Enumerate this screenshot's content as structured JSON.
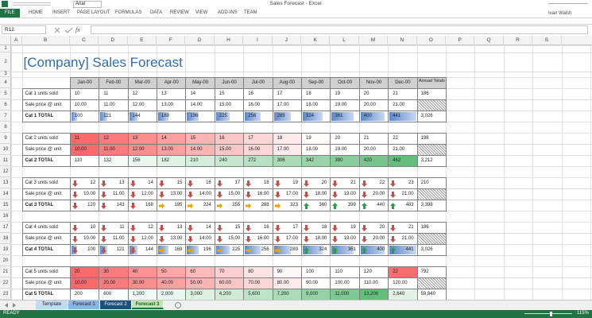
{
  "window": {
    "title": "Sales Forecast - Excel",
    "font": "Arial",
    "user": "Ivan Walsh"
  },
  "ribbon_tabs": [
    "FILE",
    "HOME",
    "INSERT",
    "PAGE LAYOUT",
    "FORMULAS",
    "DATA",
    "REVIEW",
    "VIEW",
    "ADD-INS",
    "TEAM"
  ],
  "name_box": "R12",
  "formula_label": "fx",
  "columns": [
    "A",
    "B",
    "C",
    "D",
    "E",
    "F",
    "G",
    "H",
    "I",
    "J",
    "K",
    "L",
    "M",
    "N",
    "O",
    "P",
    "Q",
    "R",
    "S"
  ],
  "rows": [
    "1",
    "2",
    "3",
    "4",
    "5",
    "6",
    "7",
    "8",
    "9",
    "10",
    "11",
    "12",
    "13",
    "14",
    "15",
    "16",
    "17",
    "18",
    "19",
    "20",
    "21",
    "22",
    "23"
  ],
  "sheet": {
    "title": "[Company] Sales Forecast",
    "months": [
      "Jan-00",
      "Feb-00",
      "Mar-00",
      "Apr-00",
      "May-00",
      "Jun-00",
      "Jul-00",
      "Aug-00",
      "Sep-00",
      "Oct-00",
      "Nov-00",
      "Dec-00"
    ],
    "annual_label": "Annual Totals",
    "blocks": [
      {
        "rows": [
          {
            "label": "Cat 1 units sold",
            "cells": [
              "10",
              "11",
              "12",
              "13",
              "14",
              "15",
              "16",
              "17",
              "18",
              "19",
              "20",
              "21"
            ],
            "total": "186"
          },
          {
            "label": "Sale price @ unit",
            "cells": [
              "10.00",
              "11.00",
              "12.00",
              "13.00",
              "14.00",
              "15.00",
              "16.00",
              "17.00",
              "18.00",
              "19.00",
              "20.00",
              "21.00"
            ]
          },
          {
            "label": "Cat 1 TOTAL",
            "cells": [
              "100",
              "121",
              "144",
              "169",
              "196",
              "225",
              "256",
              "289",
              "324",
              "361",
              "400",
              "441"
            ],
            "total": "3,026"
          }
        ]
      },
      {
        "rows": [
          {
            "label": "Cat 2 units sold",
            "cells": [
              "11",
              "12",
              "13",
              "14",
              "15",
              "16",
              "17",
              "18",
              "19",
              "20",
              "21",
              "22"
            ],
            "total": "198"
          },
          {
            "label": "Sale price @ unit",
            "cells": [
              "10.00",
              "11.00",
              "12.00",
              "13.00",
              "14.00",
              "15.00",
              "16.00",
              "17.00",
              "18.00",
              "19.00",
              "20.00",
              "21.00"
            ]
          },
          {
            "label": "Cat 2 TOTAL",
            "cells": [
              "110",
              "132",
              "156",
              "182",
              "210",
              "240",
              "272",
              "306",
              "342",
              "380",
              "420",
              "462"
            ],
            "total": "3,212"
          }
        ]
      },
      {
        "rows": [
          {
            "label": "Cat 3 units sold",
            "cells": [
              "12",
              "13",
              "14",
              "15",
              "16",
              "17",
              "18",
              "19",
              "20",
              "21",
              "22",
              "23"
            ],
            "total": "210"
          },
          {
            "label": "Sale price @ unit",
            "cells": [
              "10.00",
              "11.00",
              "12.00",
              "13.00",
              "14.00",
              "15.00",
              "16.00",
              "17.00",
              "18.00",
              "19.00",
              "20.00",
              "21.00"
            ]
          },
          {
            "label": "Cat 3 TOTAL",
            "cells": [
              "120",
              "143",
              "168",
              "195",
              "224",
              "255",
              "288",
              "323",
              "360",
              "399",
              "440",
              "483"
            ],
            "total": "3,398"
          }
        ]
      },
      {
        "rows": [
          {
            "label": "Cat 4 units sold",
            "cells": [
              "10",
              "11",
              "12",
              "13",
              "14",
              "15",
              "16",
              "17",
              "18",
              "19",
              "20",
              "21"
            ],
            "total": "186"
          },
          {
            "label": "Sale price @ unit",
            "cells": [
              "10.00",
              "11.00",
              "12.00",
              "13.00",
              "14.00",
              "15.00",
              "16.00",
              "17.00",
              "18.00",
              "19.00",
              "20.00",
              "21.00"
            ]
          },
          {
            "label": "Cat 4 TOTAL",
            "cells": [
              "100",
              "121",
              "144",
              "169",
              "196",
              "225",
              "256",
              "289",
              "324",
              "361",
              "400",
              "441"
            ],
            "total": "3,026"
          }
        ]
      },
      {
        "rows": [
          {
            "label": "Cat 5 units sold",
            "cells": [
              "20",
              "30",
              "40",
              "50",
              "60",
              "70",
              "80",
              "90",
              "100",
              "110",
              "120",
              "22"
            ],
            "total": "792"
          },
          {
            "label": "Sale price @ unit",
            "cells": [
              "10.00",
              "20.00",
              "30.00",
              "40.00",
              "50.00",
              "60.00",
              "70.00",
              "80.00",
              "90.00",
              "100.00",
              "110.00",
              "120.00"
            ]
          },
          {
            "label": "Cat 5 TOTAL",
            "cells": [
              "200",
              "600",
              "1,200",
              "2,000",
              "3,000",
              "4,200",
              "5,600",
              "7,200",
              "9,000",
              "11,000",
              "13,200",
              "2,640"
            ],
            "total": "59,840"
          }
        ]
      }
    ]
  },
  "sheet_tabs": [
    "Template",
    "Forecast 1",
    "Forecast 2",
    "Forecast 3"
  ],
  "status": {
    "mode": "READY",
    "zoom": "115%"
  }
}
